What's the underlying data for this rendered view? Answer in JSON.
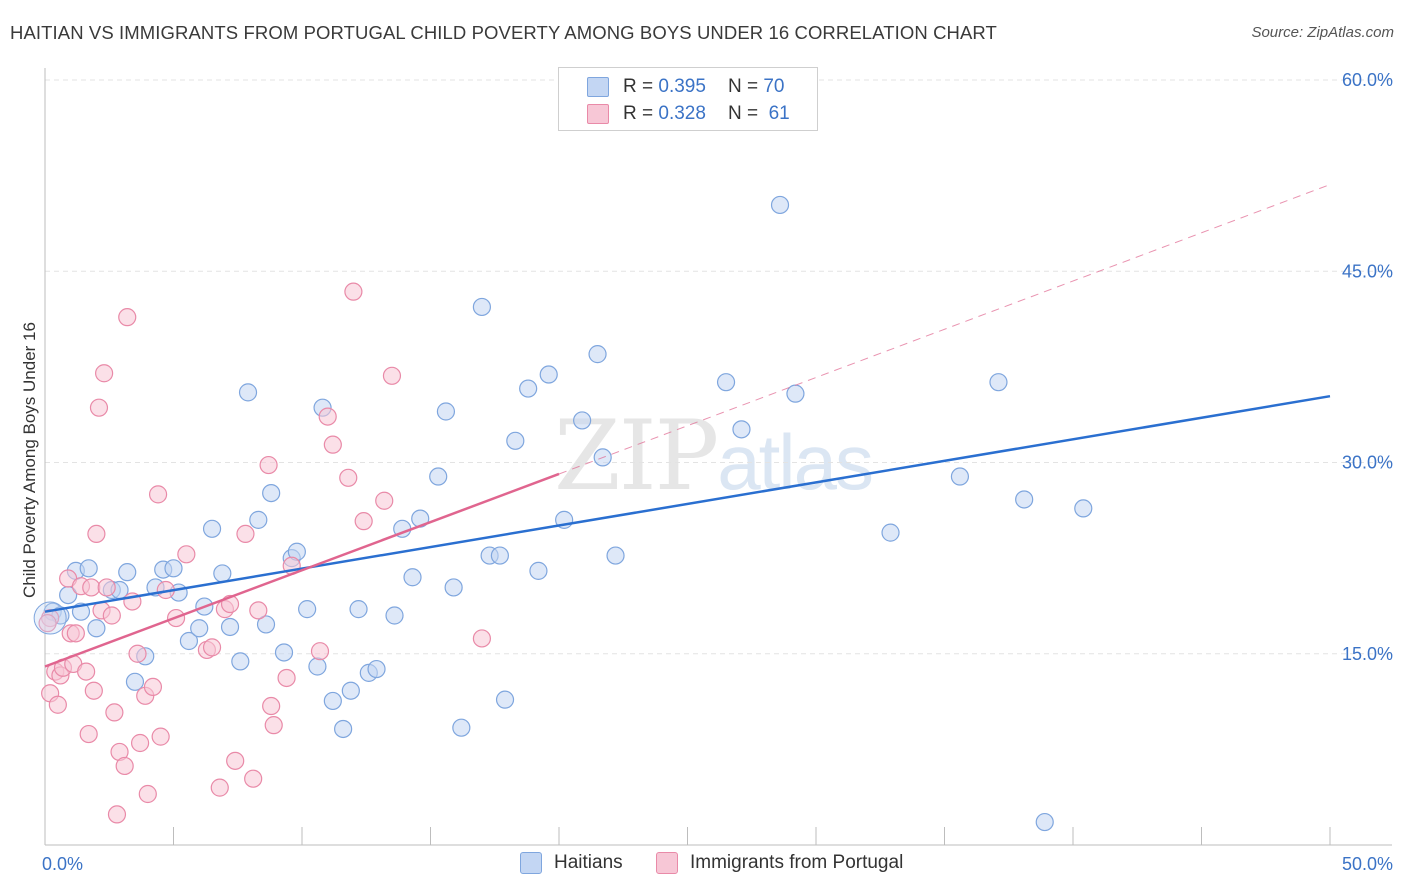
{
  "title": "HAITIAN VS IMMIGRANTS FROM PORTUGAL CHILD POVERTY AMONG BOYS UNDER 16 CORRELATION CHART",
  "source": "Source: ZipAtlas.com",
  "watermark": {
    "zip": "ZIP",
    "atlas": "atlas"
  },
  "legend_top": [
    {
      "r_label": "R =",
      "r_value": "0.395",
      "n_label": "N =",
      "n_value": "70"
    },
    {
      "r_label": "R =",
      "r_value": "0.328",
      "n_label": "N =",
      "n_value": "61"
    }
  ],
  "legend_bottom": [
    "Haitians",
    "Immigrants from Portugal"
  ],
  "colors": {
    "blue_fill": "#c3d6f3",
    "blue_stroke": "#7fa6de",
    "blue_line": "#2a6fd0",
    "pink_fill": "#f7c7d6",
    "pink_stroke": "#e98aa8",
    "pink_line": "#e0658f",
    "grid": "#e3e3e3",
    "axis_text": "#3b73c6"
  },
  "chart_data": {
    "type": "scatter",
    "title": "HAITIAN VS IMMIGRANTS FROM PORTUGAL CHILD POVERTY AMONG BOYS UNDER 16 CORRELATION CHART",
    "xlabel": "",
    "ylabel": "Child Poverty Among Boys Under 16",
    "xlim": [
      0,
      50
    ],
    "ylim": [
      0,
      60
    ],
    "x_tick_labels": [
      "0.0%",
      "50.0%"
    ],
    "y_ticks": [
      15,
      30,
      45,
      60
    ],
    "y_tick_labels": [
      "15.0%",
      "30.0%",
      "45.0%",
      "60.0%"
    ],
    "grid": true,
    "legend_position": "top-center",
    "series": [
      {
        "name": "Haitians",
        "R": 0.395,
        "N": 70,
        "trend": {
          "x": [
            0,
            50
          ],
          "y": [
            18.3,
            35.2
          ]
        },
        "points": [
          [
            0.3,
            18.3
          ],
          [
            0.6,
            18.0
          ],
          [
            0.9,
            19.6
          ],
          [
            1.2,
            21.5
          ],
          [
            1.4,
            18.3
          ],
          [
            1.7,
            21.7
          ],
          [
            2.0,
            17.0
          ],
          [
            2.6,
            20.0
          ],
          [
            2.9,
            20.0
          ],
          [
            3.2,
            21.4
          ],
          [
            3.5,
            12.8
          ],
          [
            3.9,
            14.8
          ],
          [
            4.3,
            20.2
          ],
          [
            4.6,
            21.6
          ],
          [
            5.0,
            21.7
          ],
          [
            5.2,
            19.8
          ],
          [
            5.6,
            16.0
          ],
          [
            6.0,
            17.0
          ],
          [
            6.2,
            18.7
          ],
          [
            6.5,
            24.8
          ],
          [
            6.9,
            21.3
          ],
          [
            7.2,
            17.1
          ],
          [
            7.6,
            14.4
          ],
          [
            7.9,
            35.5
          ],
          [
            8.3,
            25.5
          ],
          [
            8.6,
            17.3
          ],
          [
            8.8,
            27.6
          ],
          [
            9.3,
            15.1
          ],
          [
            9.6,
            22.5
          ],
          [
            9.8,
            23.0
          ],
          [
            10.2,
            18.5
          ],
          [
            10.6,
            14.0
          ],
          [
            10.8,
            34.3
          ],
          [
            11.2,
            11.3
          ],
          [
            11.6,
            9.1
          ],
          [
            11.9,
            12.1
          ],
          [
            12.2,
            18.5
          ],
          [
            12.6,
            13.5
          ],
          [
            12.9,
            13.8
          ],
          [
            13.6,
            18.0
          ],
          [
            13.9,
            24.8
          ],
          [
            14.3,
            21.0
          ],
          [
            14.6,
            25.6
          ],
          [
            15.3,
            28.9
          ],
          [
            15.6,
            34.0
          ],
          [
            15.9,
            20.2
          ],
          [
            16.2,
            9.2
          ],
          [
            17.0,
            42.2
          ],
          [
            17.3,
            22.7
          ],
          [
            17.7,
            22.7
          ],
          [
            17.9,
            11.4
          ],
          [
            18.3,
            31.7
          ],
          [
            18.8,
            35.8
          ],
          [
            19.2,
            21.5
          ],
          [
            19.6,
            36.9
          ],
          [
            20.2,
            25.5
          ],
          [
            20.9,
            33.3
          ],
          [
            21.5,
            38.5
          ],
          [
            21.7,
            30.4
          ],
          [
            22.2,
            22.7
          ],
          [
            26.5,
            36.3
          ],
          [
            27.1,
            32.6
          ],
          [
            28.6,
            50.2
          ],
          [
            29.2,
            35.4
          ],
          [
            32.9,
            24.5
          ],
          [
            35.6,
            28.9
          ],
          [
            37.1,
            36.3
          ],
          [
            38.1,
            27.1
          ],
          [
            38.9,
            1.8
          ],
          [
            40.4,
            26.4
          ]
        ]
      },
      {
        "name": "Immigrants from Portugal",
        "R": 0.328,
        "N": 61,
        "trend": {
          "x": [
            0,
            20
          ],
          "y": [
            14.0,
            29.1
          ]
        },
        "trend_ext": {
          "x": [
            20,
            50
          ],
          "y": [
            29.1,
            51.8
          ]
        },
        "points": [
          [
            0.2,
            17.8
          ],
          [
            0.2,
            11.9
          ],
          [
            0.4,
            13.6
          ],
          [
            0.5,
            11.0
          ],
          [
            0.6,
            13.3
          ],
          [
            0.7,
            13.9
          ],
          [
            0.9,
            20.9
          ],
          [
            1.0,
            16.6
          ],
          [
            1.1,
            14.2
          ],
          [
            1.2,
            16.6
          ],
          [
            1.4,
            20.3
          ],
          [
            1.6,
            13.6
          ],
          [
            1.7,
            8.7
          ],
          [
            1.8,
            20.2
          ],
          [
            1.9,
            12.1
          ],
          [
            2.0,
            24.4
          ],
          [
            2.1,
            34.3
          ],
          [
            2.2,
            18.4
          ],
          [
            2.3,
            37.0
          ],
          [
            2.4,
            20.2
          ],
          [
            2.6,
            18.0
          ],
          [
            2.7,
            10.4
          ],
          [
            2.8,
            2.4
          ],
          [
            2.9,
            7.3
          ],
          [
            3.1,
            6.2
          ],
          [
            3.2,
            41.4
          ],
          [
            3.4,
            19.1
          ],
          [
            3.6,
            15.0
          ],
          [
            3.7,
            8.0
          ],
          [
            3.9,
            11.7
          ],
          [
            4.0,
            4.0
          ],
          [
            4.2,
            12.4
          ],
          [
            4.4,
            27.5
          ],
          [
            4.5,
            8.5
          ],
          [
            4.7,
            20.0
          ],
          [
            5.1,
            17.8
          ],
          [
            5.5,
            22.8
          ],
          [
            6.3,
            15.3
          ],
          [
            6.5,
            15.5
          ],
          [
            6.8,
            4.5
          ],
          [
            7.0,
            18.5
          ],
          [
            7.2,
            18.9
          ],
          [
            7.4,
            6.6
          ],
          [
            7.8,
            24.4
          ],
          [
            8.1,
            5.2
          ],
          [
            8.3,
            18.4
          ],
          [
            8.7,
            29.8
          ],
          [
            8.8,
            10.9
          ],
          [
            8.9,
            9.4
          ],
          [
            9.4,
            13.1
          ],
          [
            9.6,
            21.9
          ],
          [
            10.7,
            15.2
          ],
          [
            11.0,
            33.6
          ],
          [
            11.2,
            31.4
          ],
          [
            11.8,
            28.8
          ],
          [
            12.0,
            43.4
          ],
          [
            12.4,
            25.4
          ],
          [
            13.2,
            27.0
          ],
          [
            13.5,
            36.8
          ],
          [
            17.0,
            16.2
          ],
          [
            0.1,
            17.4
          ]
        ]
      }
    ]
  }
}
